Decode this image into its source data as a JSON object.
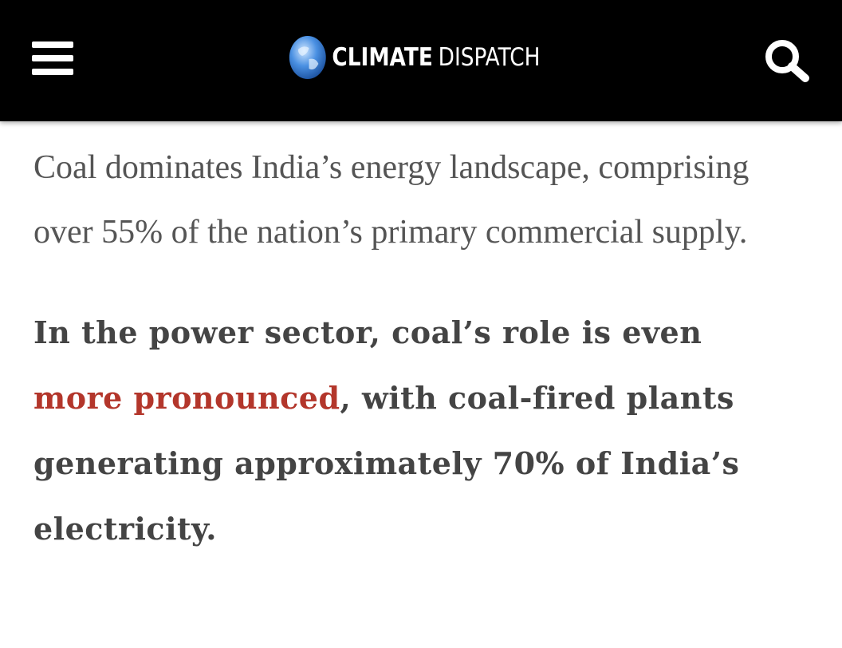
{
  "header": {
    "logo_bold": "CLIMATE",
    "logo_light": "DISPATCH"
  },
  "article": {
    "paragraphs": [
      {
        "text": "Coal dominates India’s energy landscape, comprising over 55% of the nation’s primary commercial supply."
      },
      {
        "before": "In the power sector, coal’s role is even ",
        "link": "more pronounced",
        "after": ", with coal-fired plants generating approximately 70% of India’s electricity."
      }
    ]
  }
}
